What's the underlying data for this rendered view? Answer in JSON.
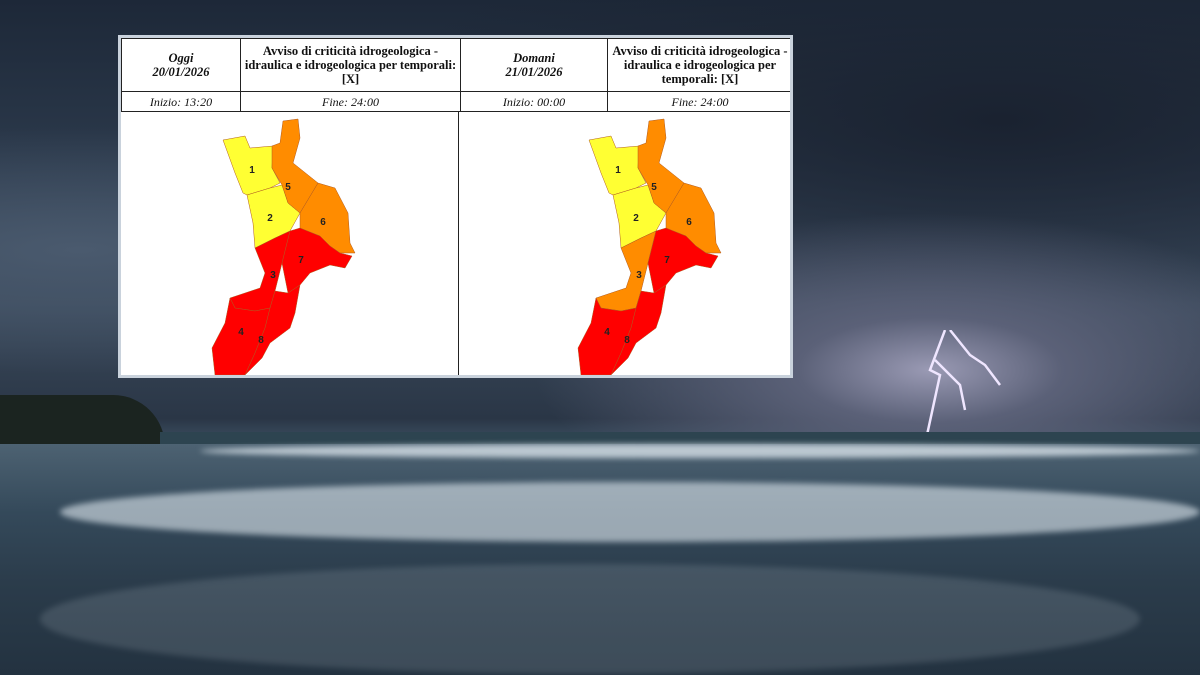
{
  "colors": {
    "yellow": "#ffff33",
    "orange": "#ff8c00",
    "red": "#ff0000"
  },
  "panels": [
    {
      "day": "Oggi",
      "date": "20/01/2026",
      "title": "Avviso di criticità idrogeologica - idraulica e idrogeologica per temporali: [X]",
      "start": "Inizio: 13:20",
      "end": "Fine: 24:00",
      "zones": {
        "1": "yellow",
        "2": "yellow",
        "3": "red",
        "4": "red",
        "5": "orange",
        "6": "orange",
        "7": "red",
        "8": "red"
      }
    },
    {
      "day": "Domani",
      "date": "21/01/2026",
      "title": "Avviso di criticità idrogeologica - idraulica e idrogeologica per temporali: [X]",
      "start": "Inizio: 00:00",
      "end": "Fine: 24:00",
      "zones": {
        "1": "yellow",
        "2": "yellow",
        "3": "orange",
        "4": "red",
        "5": "orange",
        "6": "orange",
        "7": "red",
        "8": "red"
      }
    }
  ],
  "zone_labels": [
    "1",
    "2",
    "3",
    "4",
    "5",
    "6",
    "7",
    "8"
  ]
}
